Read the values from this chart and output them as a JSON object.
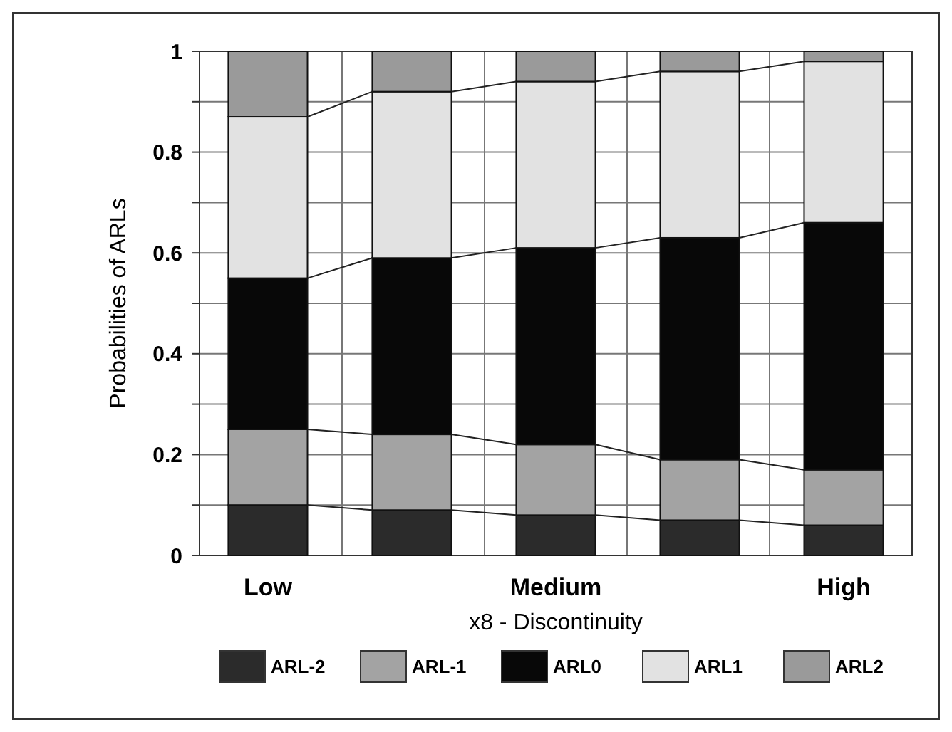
{
  "chart_data": {
    "type": "bar",
    "stacked": true,
    "xlabel": "x8 - Discontinuity",
    "ylabel": "Probabilities of ARLs",
    "categories": [
      "Low",
      null,
      "Medium",
      null,
      "High"
    ],
    "series": [
      {
        "name": "ARL-2",
        "color": "#2b2b2b",
        "values": [
          0.1,
          0.09,
          0.08,
          0.07,
          0.06
        ]
      },
      {
        "name": "ARL-1",
        "color": "#a3a3a3",
        "values": [
          0.15,
          0.15,
          0.14,
          0.12,
          0.11
        ]
      },
      {
        "name": "ARL0",
        "color": "#080808",
        "values": [
          0.3,
          0.35,
          0.39,
          0.44,
          0.49
        ]
      },
      {
        "name": "ARL1",
        "color": "#e2e2e2",
        "values": [
          0.32,
          0.33,
          0.33,
          0.33,
          0.32
        ]
      },
      {
        "name": "ARL2",
        "color": "#9a9a9a",
        "values": [
          0.13,
          0.08,
          0.06,
          0.04,
          0.02
        ]
      }
    ],
    "ylim": [
      0,
      1
    ],
    "yticks": [
      0,
      {
        "value": 0.1,
        "label": null
      },
      0.2,
      {
        "value": 0.3,
        "label": null
      },
      0.4,
      {
        "value": 0.5,
        "label": null
      },
      0.6,
      {
        "value": 0.7,
        "label": null
      },
      0.8,
      {
        "value": 0.9,
        "label": null
      },
      1
    ],
    "grid": true,
    "legend": "bottom"
  }
}
